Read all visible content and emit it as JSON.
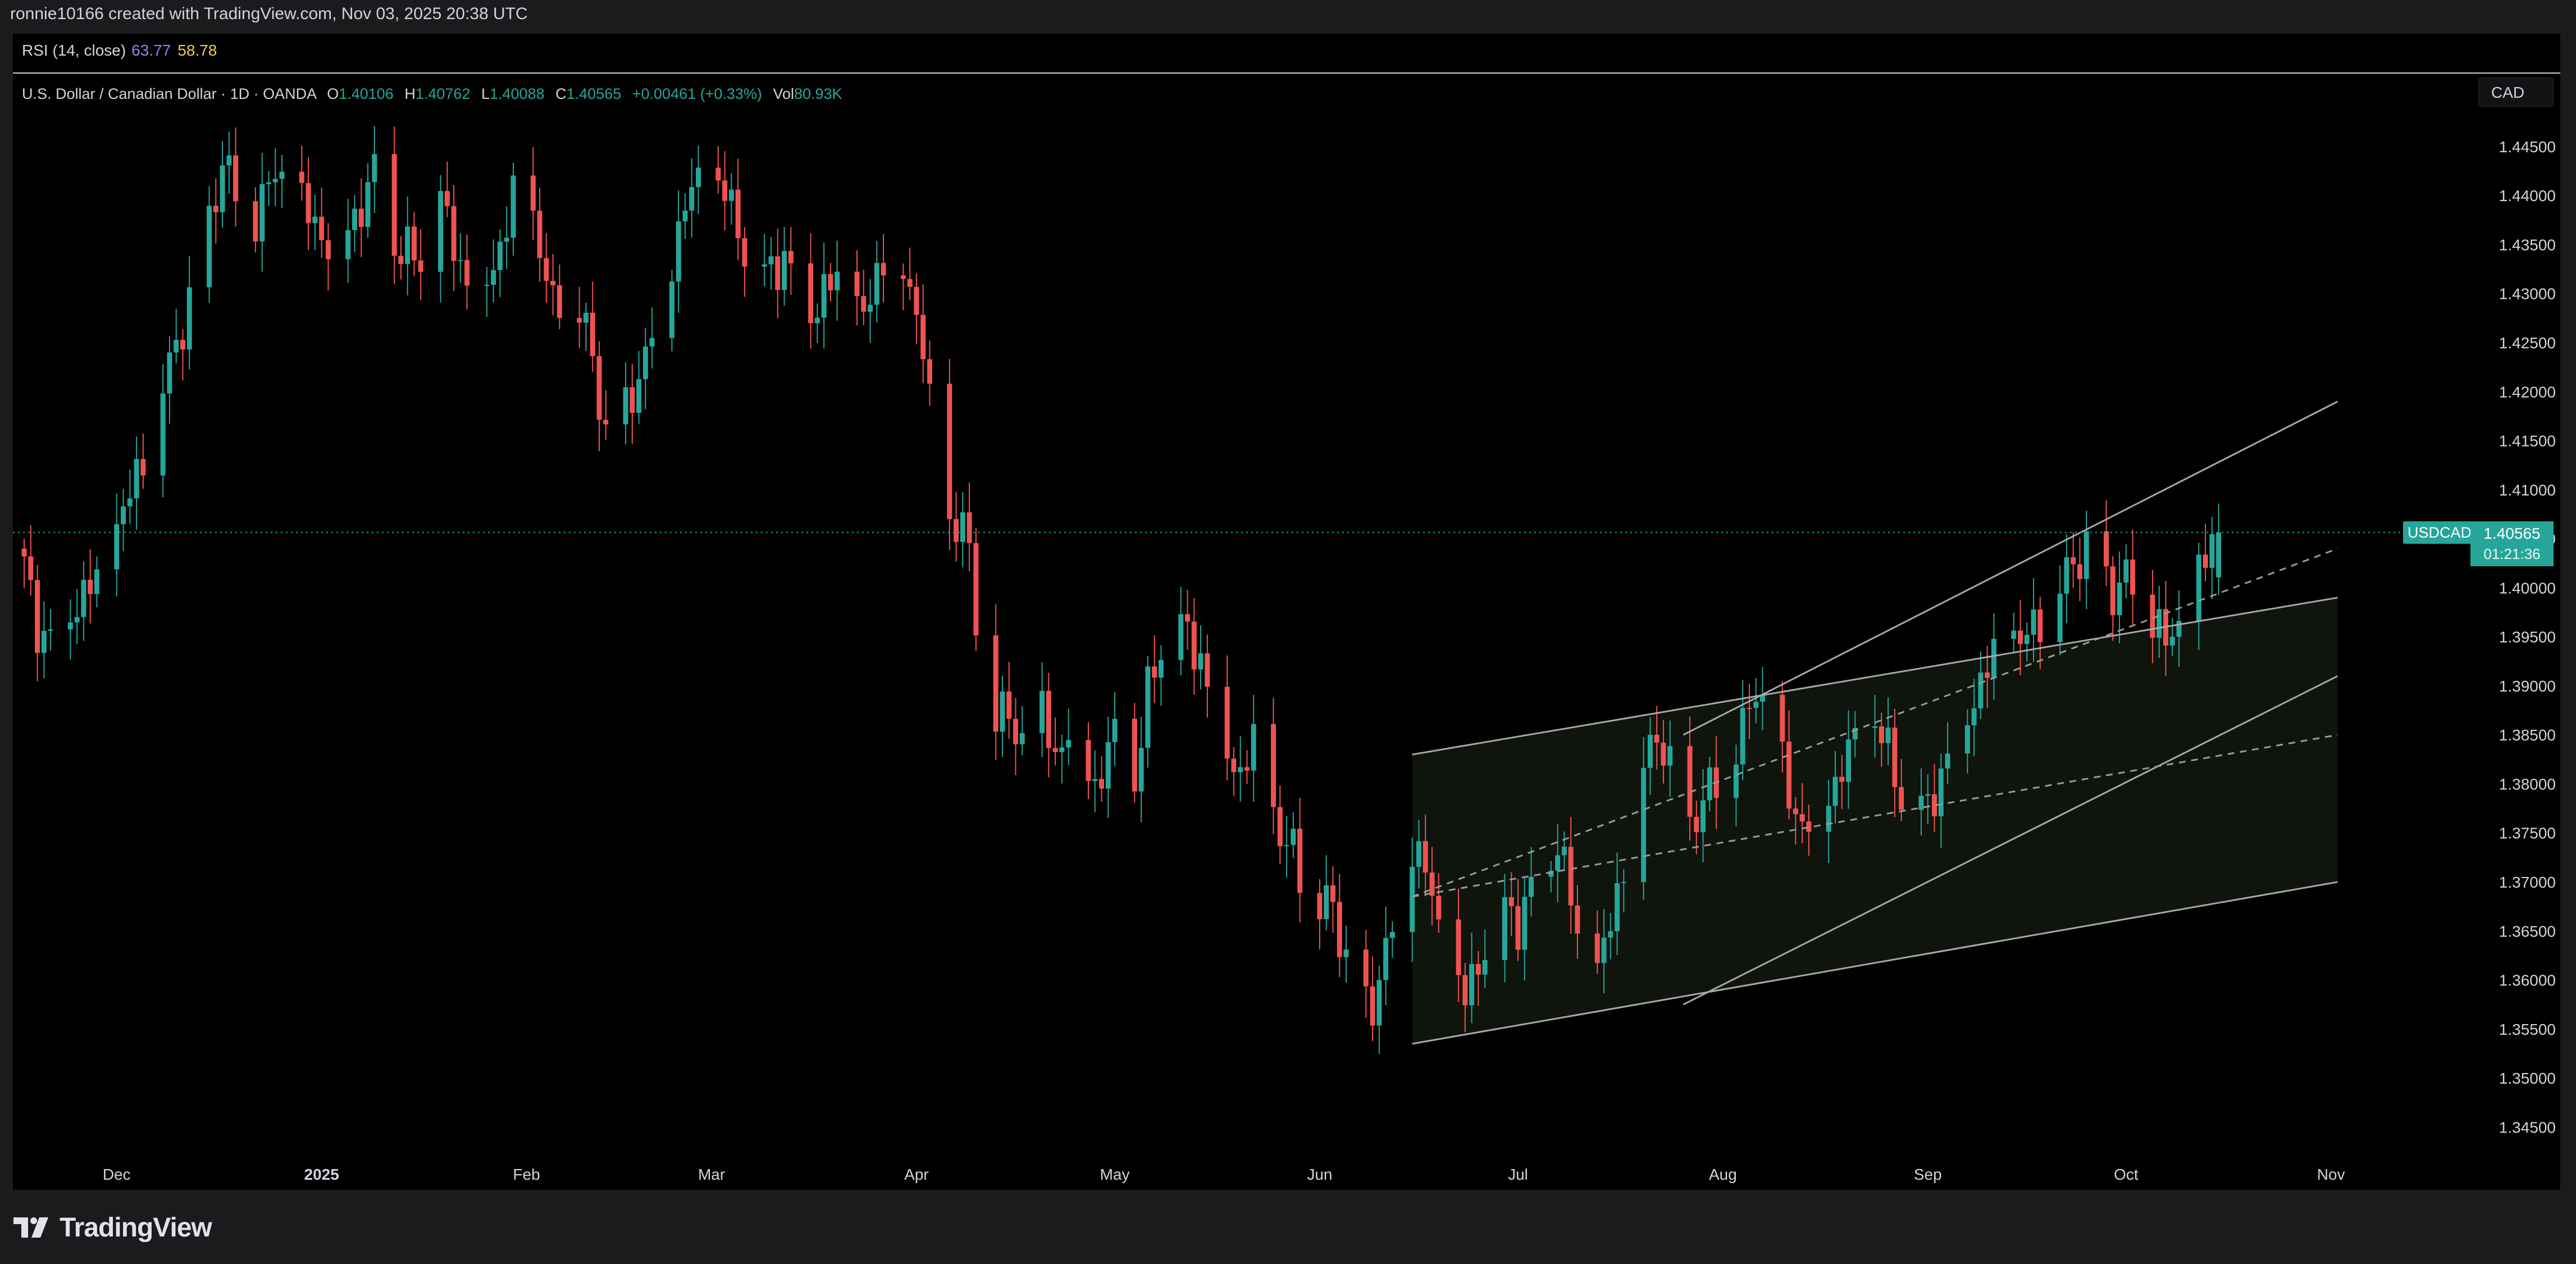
{
  "attribution": "ronnie10166 created with TradingView.com, Nov 03, 2025 20:38 UTC",
  "rsi": {
    "label": "RSI (14, close)",
    "value1": "63.77",
    "value2": "58.78"
  },
  "legend": {
    "symbol": "U.S. Dollar / Canadian Dollar · 1D · OANDA",
    "o_label": "O",
    "o_value": "1.40106",
    "h_label": "H",
    "h_value": "1.40762",
    "l_label": "L",
    "l_value": "1.40088",
    "c_label": "C",
    "c_value": "1.40565",
    "change": "+0.00461 (+0.33%)",
    "vol_label": "Vol",
    "vol_value": "80.93K"
  },
  "currency": "CAD",
  "price_tag": {
    "symbol": "USDCAD",
    "price": "1.40565",
    "countdown": "01:21:36"
  },
  "brand": {
    "name": "TradingView",
    "icon": "tradingview-logo-icon"
  },
  "colors": {
    "up": "#26a69a",
    "down": "#ef5350",
    "background": "#000000",
    "lines": "#8a8a8a"
  },
  "chart_data": {
    "type": "candlestick",
    "symbol": "USDCAD",
    "timeframe": "1D",
    "ylim": [
      1.3425,
      1.4525
    ],
    "yticks": [
      "1.44500",
      "1.44000",
      "1.43500",
      "1.43000",
      "1.42500",
      "1.42000",
      "1.41500",
      "1.41000",
      "1.40500",
      "1.40000",
      "1.39500",
      "1.39000",
      "1.38500",
      "1.38000",
      "1.37500",
      "1.37000",
      "1.36500",
      "1.36000",
      "1.35500",
      "1.35000",
      "1.34500"
    ],
    "xticks": [
      {
        "label": "Dec",
        "day": 14
      },
      {
        "label": "2025",
        "day": 45,
        "bold": true
      },
      {
        "label": "Feb",
        "day": 76
      },
      {
        "label": "Mar",
        "day": 104
      },
      {
        "label": "Apr",
        "day": 135
      },
      {
        "label": "May",
        "day": 165
      },
      {
        "label": "Jun",
        "day": 196
      },
      {
        "label": "Jul",
        "day": 226
      },
      {
        "label": "Aug",
        "day": 257
      },
      {
        "label": "Sep",
        "day": 288
      },
      {
        "label": "Oct",
        "day": 318
      },
      {
        "label": "Nov",
        "day": 349
      }
    ],
    "start_date": "2024-11-18",
    "last_day": 350,
    "anchors": [
      [
        0,
        1.402
      ],
      [
        2,
        1.396
      ],
      [
        5,
        1.395
      ],
      [
        8,
        1.399
      ],
      [
        10,
        1.4
      ],
      [
        12,
        1.401
      ],
      [
        14,
        1.406
      ],
      [
        17,
        1.411
      ],
      [
        20,
        1.418
      ],
      [
        23,
        1.425
      ],
      [
        27,
        1.434
      ],
      [
        30,
        1.444
      ],
      [
        32,
        1.44
      ],
      [
        35,
        1.438
      ],
      [
        38,
        1.442
      ],
      [
        41,
        1.44
      ],
      [
        44,
        1.437
      ],
      [
        47,
        1.435
      ],
      [
        50,
        1.438
      ],
      [
        53,
        1.442
      ],
      [
        56,
        1.435
      ],
      [
        60,
        1.433
      ],
      [
        63,
        1.439
      ],
      [
        66,
        1.433
      ],
      [
        69,
        1.43
      ],
      [
        72,
        1.435
      ],
      [
        74,
        1.44
      ],
      [
        77,
        1.438
      ],
      [
        80,
        1.428
      ],
      [
        83,
        1.431
      ],
      [
        86,
        1.423
      ],
      [
        88,
        1.416
      ],
      [
        91,
        1.418
      ],
      [
        94,
        1.424
      ],
      [
        97,
        1.431
      ],
      [
        100,
        1.439
      ],
      [
        103,
        1.442
      ],
      [
        106,
        1.44
      ],
      [
        109,
        1.435
      ],
      [
        112,
        1.432
      ],
      [
        115,
        1.434
      ],
      [
        118,
        1.428
      ],
      [
        121,
        1.43
      ],
      [
        124,
        1.432
      ],
      [
        127,
        1.427
      ],
      [
        130,
        1.434
      ],
      [
        133,
        1.432
      ],
      [
        136,
        1.426
      ],
      [
        138,
        1.412
      ],
      [
        140,
        1.406
      ],
      [
        142,
        1.408
      ],
      [
        144,
        1.396
      ],
      [
        146,
        1.388
      ],
      [
        148,
        1.387
      ],
      [
        150,
        1.385
      ],
      [
        152,
        1.384
      ],
      [
        154,
        1.387
      ],
      [
        156,
        1.383
      ],
      [
        158,
        1.386
      ],
      [
        160,
        1.383
      ],
      [
        162,
        1.38
      ],
      [
        164,
        1.383
      ],
      [
        166,
        1.386
      ],
      [
        168,
        1.38
      ],
      [
        170,
        1.389
      ],
      [
        172,
        1.394
      ],
      [
        174,
        1.396
      ],
      [
        176,
        1.395
      ],
      [
        178,
        1.393
      ],
      [
        180,
        1.388
      ],
      [
        182,
        1.384
      ],
      [
        184,
        1.381
      ],
      [
        186,
        1.384
      ],
      [
        188,
        1.38
      ],
      [
        190,
        1.374
      ],
      [
        192,
        1.373
      ],
      [
        194,
        1.369
      ],
      [
        196,
        1.367
      ],
      [
        198,
        1.368
      ],
      [
        200,
        1.362
      ],
      [
        202,
        1.357
      ],
      [
        204,
        1.358
      ],
      [
        206,
        1.363
      ],
      [
        208,
        1.368
      ],
      [
        210,
        1.374
      ],
      [
        212,
        1.371
      ],
      [
        214,
        1.365
      ],
      [
        216,
        1.36
      ],
      [
        218,
        1.358
      ],
      [
        220,
        1.362
      ],
      [
        222,
        1.366
      ],
      [
        224,
        1.368
      ],
      [
        226,
        1.366
      ],
      [
        228,
        1.369
      ],
      [
        230,
        1.372
      ],
      [
        232,
        1.374
      ],
      [
        234,
        1.368
      ],
      [
        236,
        1.361
      ],
      [
        238,
        1.36
      ],
      [
        240,
        1.366
      ],
      [
        242,
        1.372
      ],
      [
        244,
        1.38
      ],
      [
        246,
        1.385
      ],
      [
        248,
        1.384
      ],
      [
        250,
        1.379
      ],
      [
        252,
        1.376
      ],
      [
        254,
        1.378
      ],
      [
        256,
        1.38
      ],
      [
        258,
        1.382
      ],
      [
        260,
        1.385
      ],
      [
        262,
        1.39
      ],
      [
        264,
        1.387
      ],
      [
        266,
        1.382
      ],
      [
        268,
        1.377
      ],
      [
        270,
        1.376
      ],
      [
        272,
        1.379
      ],
      [
        274,
        1.38
      ],
      [
        276,
        1.383
      ],
      [
        278,
        1.385
      ],
      [
        280,
        1.386
      ],
      [
        282,
        1.383
      ],
      [
        284,
        1.379
      ],
      [
        286,
        1.376
      ],
      [
        288,
        1.378
      ],
      [
        290,
        1.381
      ],
      [
        292,
        1.385
      ],
      [
        294,
        1.388
      ],
      [
        296,
        1.39
      ],
      [
        298,
        1.393
      ],
      [
        300,
        1.395
      ],
      [
        302,
        1.394
      ],
      [
        304,
        1.396
      ],
      [
        306,
        1.398
      ],
      [
        308,
        1.4
      ],
      [
        310,
        1.403
      ],
      [
        312,
        1.404
      ],
      [
        314,
        1.402
      ],
      [
        316,
        1.4
      ],
      [
        318,
        1.401
      ],
      [
        320,
        1.399
      ],
      [
        322,
        1.397
      ],
      [
        324,
        1.394
      ],
      [
        326,
        1.396
      ],
      [
        328,
        1.4
      ],
      [
        330,
        1.403
      ],
      [
        332,
        1.406
      ]
    ],
    "overlays": {
      "channel_upper": [
        [
          251,
          1.385
        ],
        [
          350,
          1.419
        ]
      ],
      "channel_mid": [
        [
          210,
          1.383
        ],
        [
          350,
          1.399
        ]
      ],
      "channel_lower": [
        [
          210,
          1.3535
        ],
        [
          350,
          1.37
        ]
      ],
      "rising_support": [
        [
          251,
          1.3575
        ],
        [
          350,
          1.391
        ]
      ],
      "dashed_upper": [
        [
          210,
          1.3685
        ],
        [
          350,
          1.404
        ]
      ],
      "dashed_lower": [
        [
          210,
          1.3685
        ],
        [
          350,
          1.385
        ]
      ],
      "shaded_channel": [
        [
          210,
          1.383
        ],
        [
          350,
          1.399
        ],
        [
          350,
          1.37
        ],
        [
          210,
          1.3535
        ]
      ],
      "last_price": 1.40565
    }
  }
}
